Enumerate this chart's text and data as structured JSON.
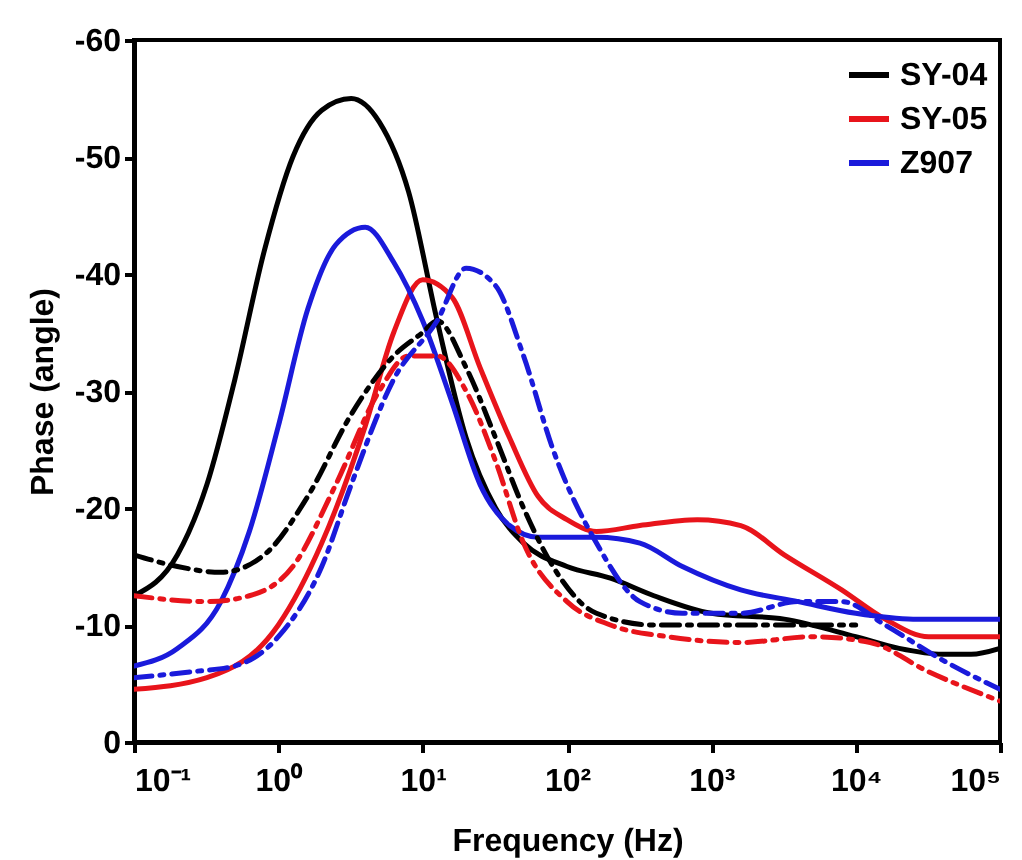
{
  "chart_data": {
    "type": "line",
    "xlabel": "Frequency (Hz)",
    "ylabel": "Phase (angle)",
    "log": "x",
    "grid": false,
    "legend": "top right",
    "marker": "none",
    "xlim": [
      0.1,
      100000
    ],
    "xticks": [
      {
        "value": 0.1,
        "label": "10⁻¹"
      },
      {
        "value": 1,
        "label": "10⁰"
      },
      {
        "value": 10,
        "label": "10¹"
      },
      {
        "value": 100,
        "label": "10²"
      },
      {
        "value": 1000,
        "label": "10³"
      },
      {
        "value": 10000,
        "label": "10⁴"
      },
      {
        "value": 100000,
        "label": "10⁵"
      }
    ],
    "ylim": [
      0,
      -60
    ],
    "yticks": [
      0,
      -10,
      -20,
      -30,
      -40,
      -50,
      -60
    ],
    "series": [
      {
        "name": "SY-04",
        "color": "#000000",
        "line_style": "solid",
        "x": [
          0.1,
          0.2,
          0.32,
          0.5,
          0.8,
          1.26,
          2,
          3.2,
          5,
          8,
          12.6,
          20,
          32,
          50,
          100,
          200,
          400,
          1000,
          3200,
          10000,
          20000,
          40000,
          63000,
          100000
        ],
        "values": [
          -12.5,
          -16,
          -22,
          -31,
          -42,
          -50,
          -54,
          -55,
          -53,
          -47,
          -36,
          -26,
          -20,
          -17,
          -15,
          -14,
          -12.5,
          -11,
          -10.5,
          -9,
          -8,
          -7.5,
          -7.5,
          -8
        ]
      },
      {
        "name": "SY-05",
        "color": "#e8141b",
        "line_style": "solid",
        "x": [
          0.1,
          0.32,
          1,
          2,
          4,
          6.3,
          10,
          16,
          25,
          40,
          63,
          100,
          160,
          320,
          800,
          1600,
          3200,
          8000,
          16000,
          32000,
          100000
        ],
        "values": [
          -4.5,
          -5.5,
          -10,
          -17,
          -27,
          -35,
          -39.5,
          -38,
          -32,
          -26,
          -21,
          -19,
          -18,
          -18.5,
          -19,
          -18.5,
          -16,
          -13,
          -10.5,
          -9,
          -9
        ]
      },
      {
        "name": "Z907",
        "color": "#1a1adb",
        "line_style": "solid",
        "x": [
          0.1,
          0.2,
          0.4,
          0.63,
          1,
          1.6,
          2.5,
          4,
          6.3,
          10,
          16,
          25,
          40,
          63,
          160,
          320,
          630,
          1600,
          4000,
          10000,
          25000,
          100000
        ],
        "values": [
          -6.5,
          -8,
          -12,
          -18,
          -27,
          -37,
          -42.5,
          -44,
          -41,
          -36,
          -29,
          -22,
          -18.5,
          -17.5,
          -17.5,
          -17,
          -15,
          -13,
          -12,
          -11,
          -10.5,
          -10.5
        ]
      },
      {
        "color": "#000000",
        "line_style": "dashed",
        "x": [
          0.1,
          0.2,
          0.4,
          0.8,
          1.6,
          3.2,
          6.3,
          10,
          12.6,
          20,
          32,
          50,
          80,
          160,
          400,
          1000,
          3200,
          8000,
          10000
        ],
        "values": [
          -16,
          -15,
          -14.5,
          -16,
          -21,
          -28,
          -33,
          -35,
          -36,
          -32,
          -26,
          -20,
          -15,
          -11,
          -10,
          -10,
          -10,
          -10,
          -10
        ]
      },
      {
        "color": "#e8141b",
        "line_style": "dashed",
        "x": [
          0.1,
          0.32,
          0.63,
          1.26,
          2.5,
          5,
          8,
          12.6,
          20,
          32,
          50,
          100,
          200,
          500,
          1600,
          5000,
          12600,
          32000,
          100000
        ],
        "values": [
          -12.5,
          -12,
          -12.5,
          -15,
          -22,
          -30,
          -33,
          -33,
          -30,
          -24,
          -17,
          -12,
          -10,
          -9,
          -8.5,
          -9,
          -8.5,
          -6,
          -3.5
        ]
      },
      {
        "color": "#1a1adb",
        "line_style": "dashed",
        "x": [
          0.1,
          0.25,
          0.5,
          1,
          2,
          3.2,
          6.3,
          12.6,
          20,
          32,
          50,
          80,
          160,
          320,
          630,
          1600,
          4000,
          8000,
          16000,
          40000,
          100000
        ],
        "values": [
          -5.5,
          -6,
          -6.5,
          -9,
          -15,
          -22,
          -31,
          -36,
          -40.5,
          -39,
          -33,
          -25,
          -17,
          -12,
          -11,
          -11,
          -12,
          -12,
          -10,
          -7,
          -4.5
        ]
      }
    ]
  }
}
